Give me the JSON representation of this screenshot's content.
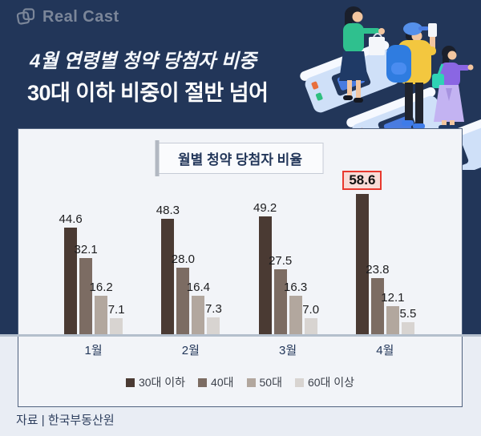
{
  "logo": {
    "text": "Real Cast"
  },
  "header": {
    "tagline": "4월 연령별 청약 당첨자 비중",
    "title": "30대 이하 비중이 절반 넘어"
  },
  "chart_data": {
    "type": "bar",
    "title": "월별 청약 당첨자 비율",
    "categories": [
      "1월",
      "2월",
      "3월",
      "4월"
    ],
    "series": [
      {
        "name": "30대 이하",
        "values": [
          44.6,
          48.3,
          49.2,
          58.6
        ]
      },
      {
        "name": "40대",
        "values": [
          32.1,
          28.0,
          27.5,
          23.8
        ]
      },
      {
        "name": "50대",
        "values": [
          16.2,
          16.4,
          16.3,
          12.1
        ]
      },
      {
        "name": "60대 이상",
        "values": [
          7.1,
          7.3,
          7.0,
          5.5
        ]
      }
    ],
    "highlight": {
      "category_index": 3,
      "series_index": 0,
      "value": 58.6
    },
    "ylim": [
      0,
      60
    ],
    "grid": false,
    "legend_position": "bottom",
    "value_labels": true
  },
  "colors": {
    "background_top": "#223659",
    "background_bottom": "#e9edf4",
    "panel": "#f2f4f8",
    "series": [
      "#4a3a33",
      "#7c6c63",
      "#b2a79e",
      "#d8d4d1"
    ],
    "highlight_border": "#e8392e",
    "highlight_bg": "#f8dcd7",
    "baseline": "#b4bfcc"
  },
  "footer": {
    "source": "자료 | 한국부동산원"
  }
}
